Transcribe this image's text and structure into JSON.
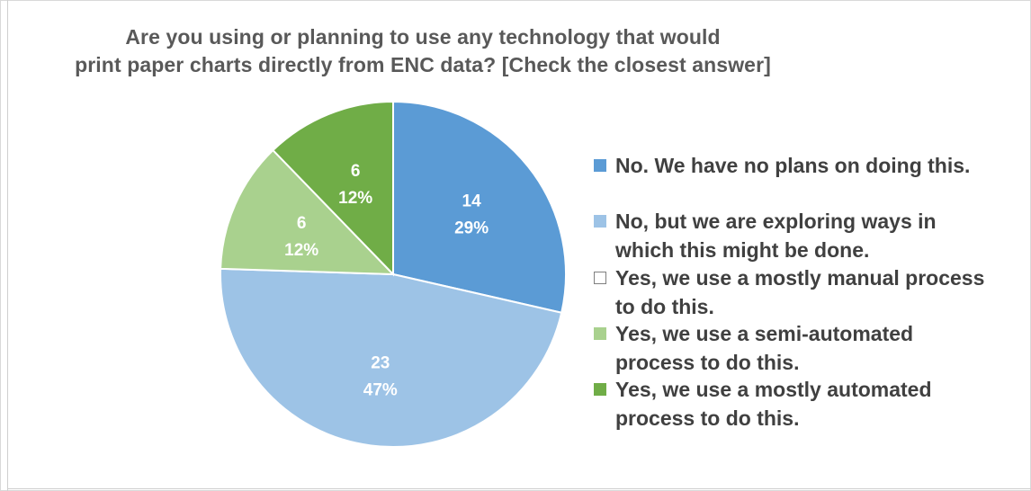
{
  "chart_data": {
    "type": "pie",
    "title_lines": [
      "Are you using or planning to use any technology that would",
      "print paper charts directly from ENC data? [Check the closest answer]"
    ],
    "slices": [
      {
        "label": "No. We have no plans on doing this.",
        "value": 14,
        "percent": "29%",
        "color": "#5b9bd5"
      },
      {
        "label": "No, but we are exploring ways in which this might be done.",
        "value": 23,
        "percent": "47%",
        "color": "#9dc3e6"
      },
      {
        "label": "Yes, we use a mostly manual process to do this.",
        "value": 0,
        "percent": "",
        "color": "#ffffff"
      },
      {
        "label": "Yes, we use a semi-automated process to do this.",
        "value": 6,
        "percent": "12%",
        "color": "#a9d18e"
      },
      {
        "label": "Yes, we use a mostly automated process to do this.",
        "value": 6,
        "percent": "12%",
        "color": "#70ad47"
      }
    ],
    "legend": {
      "placement": "right",
      "items": [
        {
          "lines": [
            "No. We have no plans on doing this."
          ],
          "color": "#5b9bd5"
        },
        {
          "lines": [
            "No, but we are exploring ways in",
            "which this might be done."
          ],
          "color": "#9dc3e6"
        },
        {
          "lines": [
            "Yes, we use a mostly manual process",
            "to do this."
          ],
          "color": "#ffffff"
        },
        {
          "lines": [
            "Yes, we use a semi-automated",
            "process to do this."
          ],
          "color": "#a9d18e"
        },
        {
          "lines": [
            "Yes, we use a mostly automated",
            "process to do this."
          ],
          "color": "#70ad47"
        }
      ]
    },
    "border_color": "#ffffff"
  }
}
